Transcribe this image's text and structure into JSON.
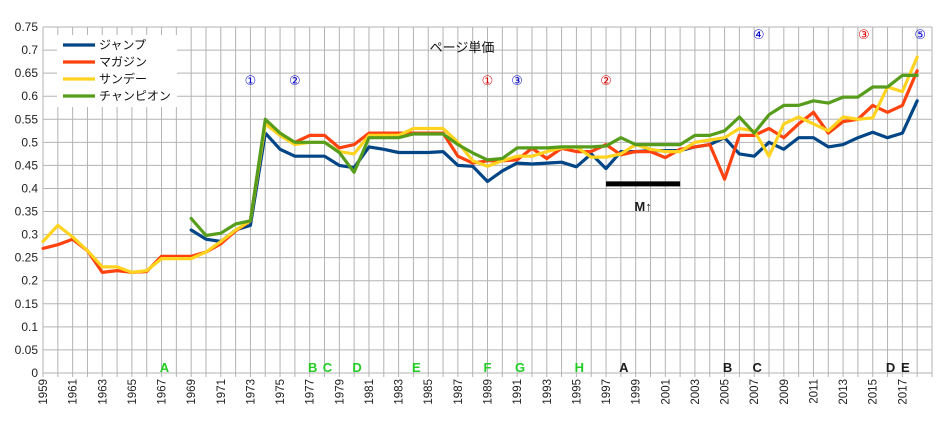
{
  "chart_data": {
    "type": "line",
    "title": "ページ単価",
    "xlabel": "",
    "ylabel": "",
    "xlim": [
      1959,
      2019
    ],
    "ylim": [
      0,
      0.75
    ],
    "ytick_step": 0.05,
    "y_ticks": [
      "0",
      "0.05",
      "0.1",
      "0.15",
      "0.2",
      "0.25",
      "0.3",
      "0.35",
      "0.4",
      "0.45",
      "0.5",
      "0.55",
      "0.6",
      "0.65",
      "0.7",
      "0.75"
    ],
    "x_ticks": [
      "1959",
      "1961",
      "1963",
      "1965",
      "1967",
      "1969",
      "1971",
      "1973",
      "1975",
      "1977",
      "1979",
      "1981",
      "1983",
      "1985",
      "1987",
      "1989",
      "1991",
      "1993",
      "1995",
      "1997",
      "1999",
      "2001",
      "2003",
      "2005",
      "2007",
      "2009",
      "2011",
      "2013",
      "2015",
      "2017"
    ],
    "grid": true,
    "legend_position": "top-left",
    "series": [
      {
        "name": "ジャンプ",
        "color": "#004586",
        "points": [
          [
            1969,
            0.31
          ],
          [
            1970,
            0.29
          ],
          [
            1971,
            0.285
          ],
          [
            1972,
            0.31
          ],
          [
            1973,
            0.32
          ],
          [
            1974,
            0.52
          ],
          [
            1975,
            0.485
          ],
          [
            1976,
            0.47
          ],
          [
            1977,
            0.47
          ],
          [
            1978,
            0.47
          ],
          [
            1979,
            0.45
          ],
          [
            1980,
            0.445
          ],
          [
            1981,
            0.49
          ],
          [
            1982,
            0.485
          ],
          [
            1983,
            0.478
          ],
          [
            1984,
            0.478
          ],
          [
            1985,
            0.478
          ],
          [
            1986,
            0.48
          ],
          [
            1987,
            0.45
          ],
          [
            1988,
            0.448
          ],
          [
            1989,
            0.415
          ],
          [
            1990,
            0.438
          ],
          [
            1991,
            0.455
          ],
          [
            1992,
            0.453
          ],
          [
            1993,
            0.455
          ],
          [
            1994,
            0.457
          ],
          [
            1995,
            0.447
          ],
          [
            1996,
            0.475
          ],
          [
            1997,
            0.443
          ],
          [
            1998,
            0.48
          ],
          [
            1999,
            0.48
          ],
          [
            2000,
            0.482
          ],
          [
            2001,
            0.482
          ],
          [
            2002,
            0.482
          ],
          [
            2003,
            0.49
          ],
          [
            2004,
            0.495
          ],
          [
            2005,
            0.51
          ],
          [
            2006,
            0.475
          ],
          [
            2007,
            0.47
          ],
          [
            2008,
            0.5
          ],
          [
            2009,
            0.485
          ],
          [
            2010,
            0.51
          ],
          [
            2011,
            0.51
          ],
          [
            2012,
            0.49
          ],
          [
            2013,
            0.495
          ],
          [
            2014,
            0.51
          ],
          [
            2015,
            0.522
          ],
          [
            2016,
            0.51
          ],
          [
            2017,
            0.52
          ],
          [
            2018,
            0.59
          ]
        ]
      },
      {
        "name": "マガジン",
        "color": "#ff420e",
        "points": [
          [
            1959,
            0.27
          ],
          [
            1960,
            0.278
          ],
          [
            1961,
            0.29
          ],
          [
            1962,
            0.265
          ],
          [
            1963,
            0.218
          ],
          [
            1964,
            0.222
          ],
          [
            1965,
            0.218
          ],
          [
            1966,
            0.22
          ],
          [
            1967,
            0.253
          ],
          [
            1968,
            0.253
          ],
          [
            1969,
            0.253
          ],
          [
            1970,
            0.262
          ],
          [
            1971,
            0.28
          ],
          [
            1972,
            0.308
          ],
          [
            1973,
            0.33
          ],
          [
            1974,
            0.545
          ],
          [
            1975,
            0.515
          ],
          [
            1976,
            0.5
          ],
          [
            1977,
            0.515
          ],
          [
            1978,
            0.515
          ],
          [
            1979,
            0.488
          ],
          [
            1980,
            0.495
          ],
          [
            1981,
            0.52
          ],
          [
            1982,
            0.52
          ],
          [
            1983,
            0.52
          ],
          [
            1984,
            0.52
          ],
          [
            1985,
            0.52
          ],
          [
            1986,
            0.52
          ],
          [
            1987,
            0.47
          ],
          [
            1988,
            0.455
          ],
          [
            1989,
            0.46
          ],
          [
            1990,
            0.46
          ],
          [
            1991,
            0.462
          ],
          [
            1992,
            0.487
          ],
          [
            1993,
            0.465
          ],
          [
            1994,
            0.487
          ],
          [
            1995,
            0.48
          ],
          [
            1996,
            0.48
          ],
          [
            1997,
            0.495
          ],
          [
            1998,
            0.473
          ],
          [
            1999,
            0.48
          ],
          [
            2000,
            0.48
          ],
          [
            2001,
            0.467
          ],
          [
            2002,
            0.485
          ],
          [
            2003,
            0.49
          ],
          [
            2004,
            0.495
          ],
          [
            2005,
            0.42
          ],
          [
            2006,
            0.515
          ],
          [
            2007,
            0.515
          ],
          [
            2008,
            0.53
          ],
          [
            2009,
            0.51
          ],
          [
            2010,
            0.54
          ],
          [
            2011,
            0.565
          ],
          [
            2012,
            0.52
          ],
          [
            2013,
            0.545
          ],
          [
            2014,
            0.55
          ],
          [
            2015,
            0.58
          ],
          [
            2016,
            0.565
          ],
          [
            2017,
            0.58
          ],
          [
            2018,
            0.655
          ]
        ]
      },
      {
        "name": "サンデー",
        "color": "#ffd320",
        "points": [
          [
            1959,
            0.285
          ],
          [
            1960,
            0.32
          ],
          [
            1961,
            0.295
          ],
          [
            1962,
            0.265
          ],
          [
            1963,
            0.23
          ],
          [
            1964,
            0.23
          ],
          [
            1965,
            0.218
          ],
          [
            1966,
            0.222
          ],
          [
            1967,
            0.248
          ],
          [
            1968,
            0.248
          ],
          [
            1969,
            0.248
          ],
          [
            1970,
            0.262
          ],
          [
            1971,
            0.285
          ],
          [
            1972,
            0.31
          ],
          [
            1973,
            0.33
          ],
          [
            1974,
            0.54
          ],
          [
            1975,
            0.515
          ],
          [
            1976,
            0.495
          ],
          [
            1977,
            0.5
          ],
          [
            1978,
            0.5
          ],
          [
            1979,
            0.48
          ],
          [
            1980,
            0.475
          ],
          [
            1981,
            0.515
          ],
          [
            1982,
            0.515
          ],
          [
            1983,
            0.515
          ],
          [
            1984,
            0.53
          ],
          [
            1985,
            0.53
          ],
          [
            1986,
            0.53
          ],
          [
            1987,
            0.5
          ],
          [
            1988,
            0.46
          ],
          [
            1989,
            0.448
          ],
          [
            1990,
            0.46
          ],
          [
            1991,
            0.47
          ],
          [
            1992,
            0.47
          ],
          [
            1993,
            0.48
          ],
          [
            1994,
            0.488
          ],
          [
            1995,
            0.49
          ],
          [
            1996,
            0.468
          ],
          [
            1997,
            0.468
          ],
          [
            1998,
            0.475
          ],
          [
            1999,
            0.495
          ],
          [
            2000,
            0.485
          ],
          [
            2001,
            0.48
          ],
          [
            2002,
            0.48
          ],
          [
            2003,
            0.5
          ],
          [
            2004,
            0.505
          ],
          [
            2005,
            0.51
          ],
          [
            2006,
            0.53
          ],
          [
            2007,
            0.525
          ],
          [
            2008,
            0.47
          ],
          [
            2009,
            0.54
          ],
          [
            2010,
            0.555
          ],
          [
            2011,
            0.54
          ],
          [
            2012,
            0.525
          ],
          [
            2013,
            0.555
          ],
          [
            2014,
            0.55
          ],
          [
            2015,
            0.553
          ],
          [
            2016,
            0.62
          ],
          [
            2017,
            0.61
          ],
          [
            2018,
            0.685
          ]
        ]
      },
      {
        "name": "チャンピオン",
        "color": "#579d1c",
        "points": [
          [
            1969,
            0.335
          ],
          [
            1970,
            0.298
          ],
          [
            1971,
            0.303
          ],
          [
            1972,
            0.323
          ],
          [
            1973,
            0.33
          ],
          [
            1974,
            0.55
          ],
          [
            1975,
            0.52
          ],
          [
            1976,
            0.5
          ],
          [
            1977,
            0.5
          ],
          [
            1978,
            0.5
          ],
          [
            1979,
            0.478
          ],
          [
            1980,
            0.435
          ],
          [
            1981,
            0.51
          ],
          [
            1982,
            0.51
          ],
          [
            1983,
            0.51
          ],
          [
            1984,
            0.518
          ],
          [
            1985,
            0.518
          ],
          [
            1986,
            0.518
          ],
          [
            1987,
            0.495
          ],
          [
            1988,
            0.477
          ],
          [
            1989,
            0.462
          ],
          [
            1990,
            0.465
          ],
          [
            1991,
            0.488
          ],
          [
            1992,
            0.488
          ],
          [
            1993,
            0.488
          ],
          [
            1994,
            0.49
          ],
          [
            1995,
            0.49
          ],
          [
            1996,
            0.49
          ],
          [
            1997,
            0.492
          ],
          [
            1998,
            0.51
          ],
          [
            1999,
            0.495
          ],
          [
            2000,
            0.495
          ],
          [
            2001,
            0.495
          ],
          [
            2002,
            0.495
          ],
          [
            2003,
            0.515
          ],
          [
            2004,
            0.515
          ],
          [
            2005,
            0.525
          ],
          [
            2006,
            0.555
          ],
          [
            2007,
            0.52
          ],
          [
            2008,
            0.56
          ],
          [
            2009,
            0.58
          ],
          [
            2010,
            0.58
          ],
          [
            2011,
            0.59
          ],
          [
            2012,
            0.585
          ],
          [
            2013,
            0.598
          ],
          [
            2014,
            0.598
          ],
          [
            2015,
            0.62
          ],
          [
            2016,
            0.62
          ],
          [
            2017,
            0.645
          ],
          [
            2018,
            0.645
          ]
        ]
      }
    ],
    "annotations": {
      "circled": [
        {
          "text": "①",
          "x": 1973,
          "y": 0.635,
          "color": "#0000cc"
        },
        {
          "text": "②",
          "x": 1976,
          "y": 0.635,
          "color": "#0000cc"
        },
        {
          "text": "①",
          "x": 1989,
          "y": 0.635,
          "color": "#dd0000"
        },
        {
          "text": "③",
          "x": 1991,
          "y": 0.635,
          "color": "#0000cc"
        },
        {
          "text": "②",
          "x": 1997,
          "y": 0.635,
          "color": "#dd0000"
        },
        {
          "text": "④",
          "x": 2007.3,
          "y": 0.735,
          "color": "#0000cc"
        },
        {
          "text": "③",
          "x": 2014.4,
          "y": 0.735,
          "color": "#dd0000"
        },
        {
          "text": "⑤",
          "x": 2018.2,
          "y": 0.735,
          "color": "#0000cc"
        }
      ],
      "events": [
        {
          "text": "A",
          "x": 1967.2,
          "color": "#22cc22"
        },
        {
          "text": "B",
          "x": 1977.2,
          "color": "#22cc22"
        },
        {
          "text": "C",
          "x": 1978.2,
          "color": "#22cc22"
        },
        {
          "text": "D",
          "x": 1980.2,
          "color": "#22cc22"
        },
        {
          "text": "E",
          "x": 1984.2,
          "color": "#22cc22"
        },
        {
          "text": "F",
          "x": 1989,
          "color": "#22cc22"
        },
        {
          "text": "G",
          "x": 1991.2,
          "color": "#22cc22"
        },
        {
          "text": "H",
          "x": 1995.2,
          "color": "#22cc22"
        },
        {
          "text": "A",
          "x": 1998.2,
          "color": "#1a1a1a"
        },
        {
          "text": "B",
          "x": 2005.2,
          "color": "#1a1a1a"
        },
        {
          "text": "C",
          "x": 2007.2,
          "color": "#1a1a1a"
        },
        {
          "text": "D",
          "x": 2016.2,
          "color": "#1a1a1a"
        },
        {
          "text": "E",
          "x": 2017.2,
          "color": "#1a1a1a"
        }
      ],
      "marker": {
        "label": "M↑",
        "x_start": 1997,
        "x_end": 2002,
        "y": 0.41
      }
    }
  }
}
